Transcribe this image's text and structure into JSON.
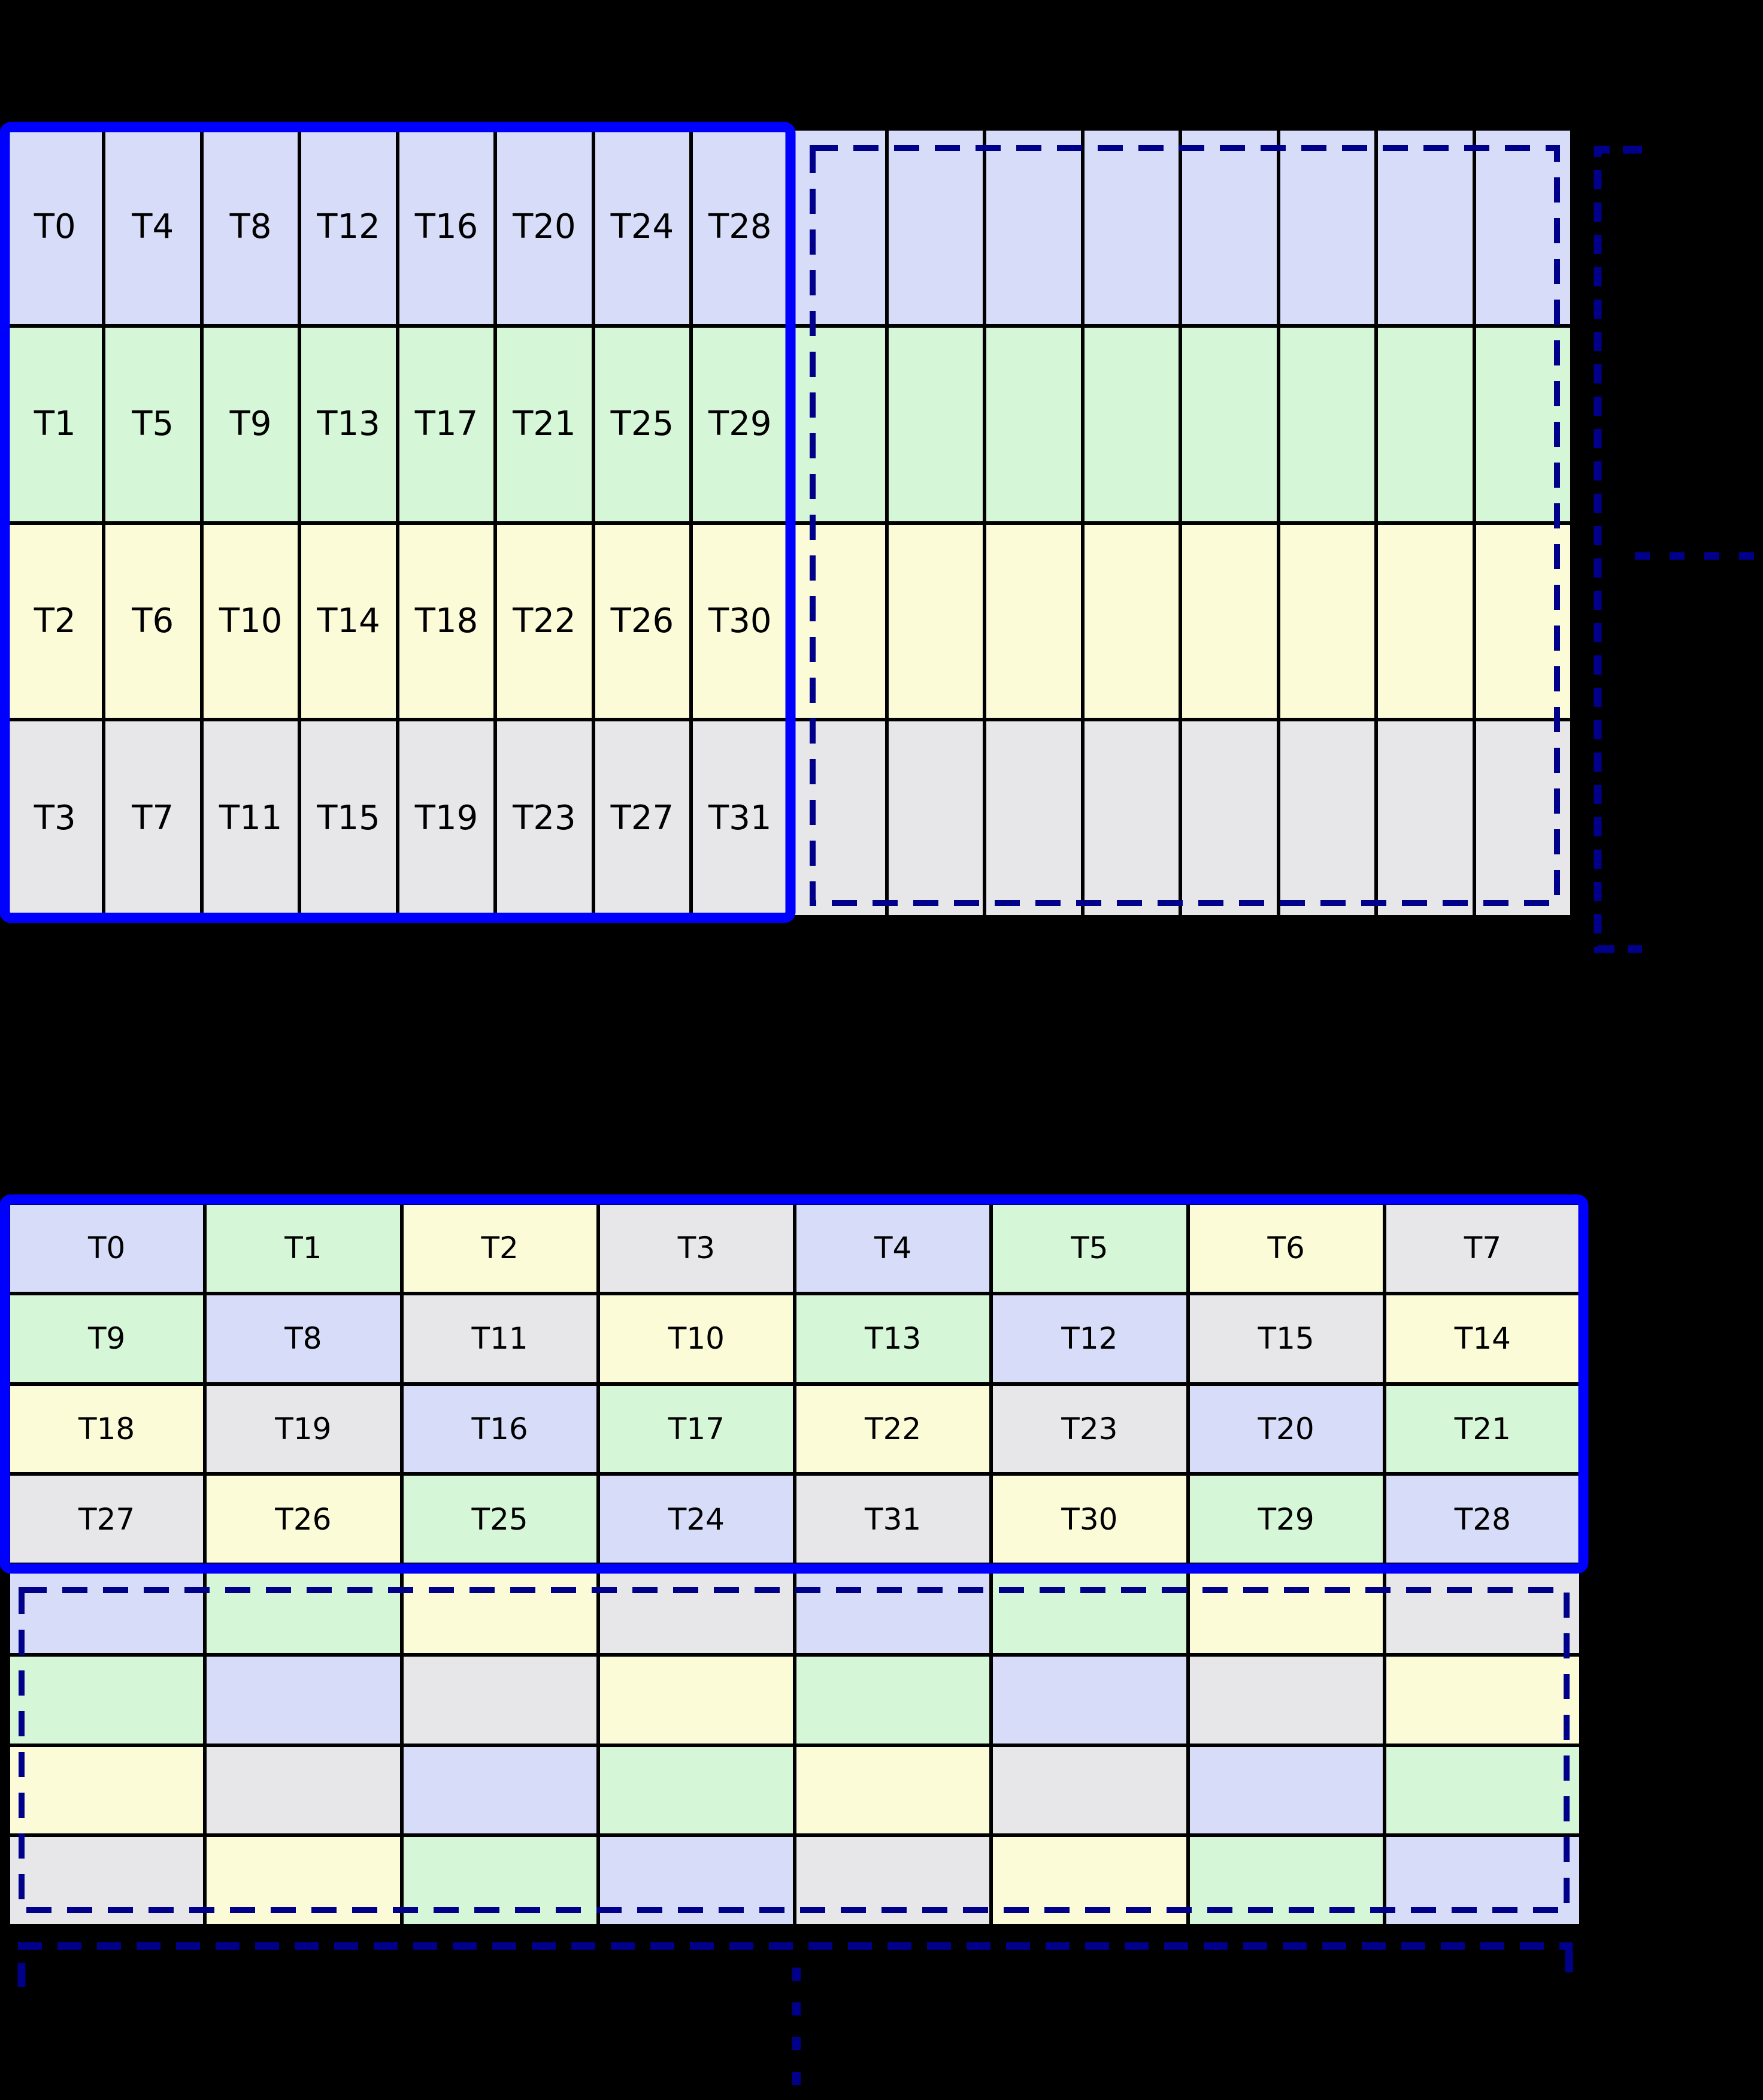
{
  "palette": {
    "cell_colors": [
      "#d7dcf8",
      "#d5f7d7",
      "#fcfbd8",
      "#e7e7ea"
    ],
    "cell_color_names": [
      "lavender",
      "green",
      "yellow",
      "gray"
    ],
    "solid_border_color": "#0000ff",
    "dashed_border_color": "#00008b",
    "grid_line_color": "#000000",
    "label_color": "#000000",
    "background_color": "#000000"
  },
  "grid1": {
    "rows": 4,
    "cols": 16,
    "labeled_cols": 8,
    "row_color_index": [
      0,
      1,
      2,
      3
    ],
    "labels": [
      [
        "T0",
        "T4",
        "T8",
        "T12",
        "T16",
        "T20",
        "T24",
        "T28"
      ],
      [
        "T1",
        "T5",
        "T9",
        "T13",
        "T17",
        "T21",
        "T25",
        "T29"
      ],
      [
        "T2",
        "T6",
        "T10",
        "T14",
        "T18",
        "T22",
        "T26",
        "T30"
      ],
      [
        "T3",
        "T7",
        "T11",
        "T15",
        "T19",
        "T23",
        "T27",
        "T31"
      ]
    ]
  },
  "grid2": {
    "rows": 8,
    "cols": 8,
    "labeled_rows": 4,
    "color_pattern": [
      [
        0,
        1,
        2,
        3,
        0,
        1,
        2,
        3
      ],
      [
        1,
        0,
        3,
        2,
        1,
        0,
        3,
        2
      ],
      [
        2,
        3,
        0,
        1,
        2,
        3,
        0,
        1
      ],
      [
        3,
        2,
        1,
        0,
        3,
        2,
        1,
        0
      ]
    ],
    "labels": [
      [
        "T0",
        "T1",
        "T2",
        "T3",
        "T4",
        "T5",
        "T6",
        "T7"
      ],
      [
        "T9",
        "T8",
        "T11",
        "T10",
        "T13",
        "T12",
        "T15",
        "T14"
      ],
      [
        "T18",
        "T19",
        "T16",
        "T17",
        "T22",
        "T23",
        "T20",
        "T21"
      ],
      [
        "T27",
        "T26",
        "T25",
        "T24",
        "T31",
        "T30",
        "T29",
        "T28"
      ]
    ]
  }
}
